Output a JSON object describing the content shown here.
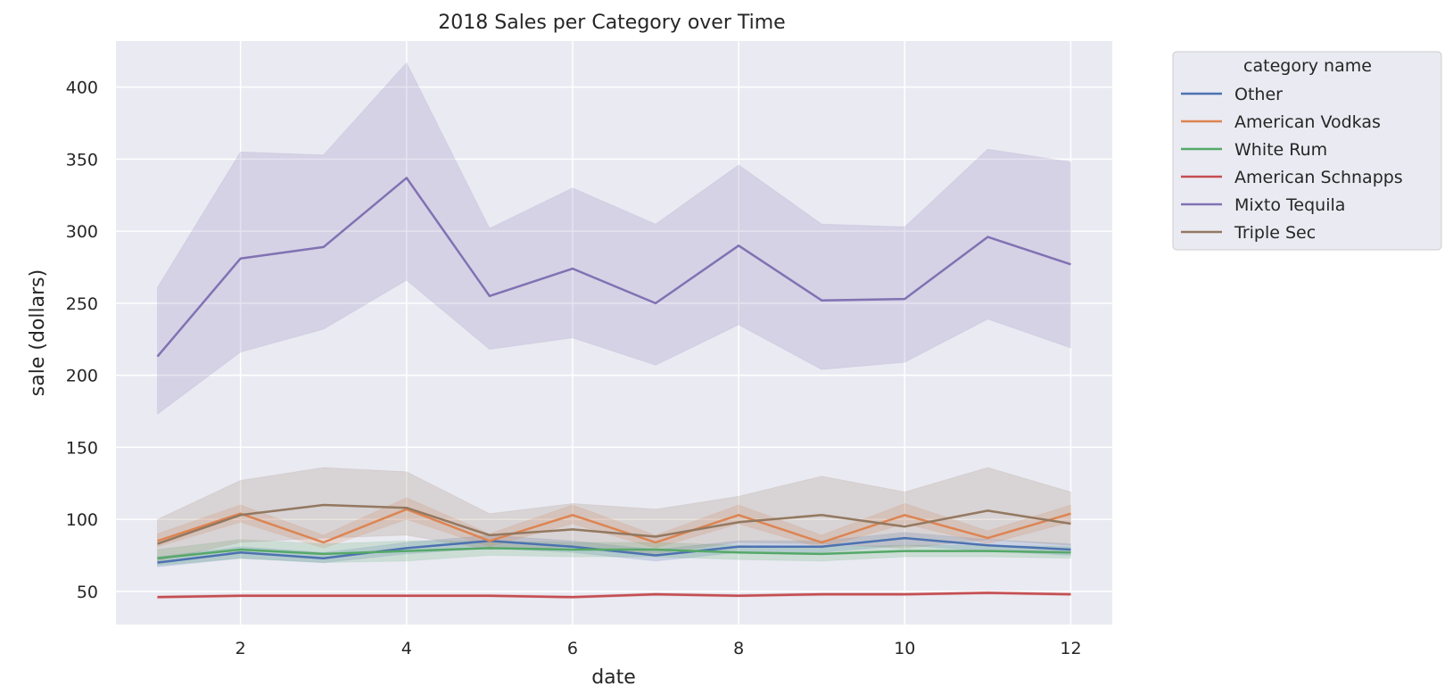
{
  "chart_data": {
    "type": "line",
    "title": "2018 Sales per Category over Time",
    "xlabel": "date",
    "ylabel": "sale (dollars)",
    "xlim": [
      0.5,
      12.5
    ],
    "ylim": [
      27,
      432
    ],
    "xticks": [
      2,
      4,
      6,
      8,
      10,
      12
    ],
    "yticks": [
      50,
      100,
      150,
      200,
      250,
      300,
      350,
      400
    ],
    "grid": true,
    "legend": {
      "title": "category name",
      "placement": "outside-top-right"
    },
    "x": [
      1,
      2,
      3,
      4,
      5,
      6,
      7,
      8,
      9,
      10,
      11,
      12
    ],
    "series": [
      {
        "name": "Other",
        "color": "#4c72b0",
        "values": [
          70,
          77,
          73,
          80,
          85,
          81,
          75,
          81,
          81,
          87,
          82,
          79
        ],
        "lower": [
          67,
          73,
          70,
          76,
          80,
          77,
          71,
          77,
          77,
          82,
          78,
          75
        ],
        "upper": [
          74,
          81,
          77,
          84,
          89,
          85,
          79,
          85,
          85,
          91,
          86,
          83
        ]
      },
      {
        "name": "American Vodkas",
        "color": "#dd8452",
        "values": [
          85,
          104,
          84,
          107,
          85,
          103,
          84,
          103,
          84,
          103,
          87,
          104
        ],
        "lower": [
          81,
          98,
          80,
          100,
          81,
          97,
          80,
          97,
          80,
          97,
          83,
          98
        ],
        "upper": [
          90,
          110,
          89,
          115,
          90,
          110,
          89,
          110,
          89,
          111,
          92,
          110
        ]
      },
      {
        "name": "White Rum",
        "color": "#55a868",
        "values": [
          73,
          79,
          76,
          78,
          80,
          79,
          79,
          77,
          76,
          78,
          78,
          77
        ],
        "lower": [
          68,
          73,
          70,
          71,
          75,
          74,
          74,
          72,
          71,
          74,
          74,
          73
        ],
        "upper": [
          79,
          86,
          83,
          85,
          85,
          84,
          84,
          82,
          81,
          82,
          82,
          81
        ]
      },
      {
        "name": "American Schnapps",
        "color": "#c44e52",
        "values": [
          46,
          47,
          47,
          47,
          47,
          46,
          48,
          47,
          48,
          48,
          49,
          48
        ],
        "lower": [
          45,
          46,
          46,
          46,
          46,
          45,
          47,
          46,
          47,
          47,
          48,
          47
        ],
        "upper": [
          47,
          48,
          48,
          48,
          48,
          47,
          49,
          48,
          49,
          49,
          50,
          49
        ]
      },
      {
        "name": "Mixto Tequila",
        "color": "#8172b3",
        "values": [
          213,
          281,
          289,
          337,
          255,
          274,
          250,
          290,
          252,
          253,
          296,
          277
        ],
        "lower": [
          173,
          216,
          232,
          266,
          218,
          226,
          207,
          235,
          204,
          209,
          239,
          219
        ],
        "upper": [
          261,
          355,
          353,
          417,
          302,
          330,
          305,
          346,
          305,
          303,
          357,
          348
        ]
      },
      {
        "name": "Triple Sec",
        "color": "#937860",
        "values": [
          83,
          103,
          110,
          108,
          89,
          93,
          88,
          98,
          103,
          95,
          106,
          97
        ],
        "lower": [
          71,
          84,
          87,
          89,
          79,
          81,
          76,
          84,
          83,
          80,
          86,
          82
        ],
        "upper": [
          100,
          127,
          136,
          133,
          104,
          111,
          107,
          116,
          130,
          119,
          136,
          119
        ]
      }
    ]
  }
}
